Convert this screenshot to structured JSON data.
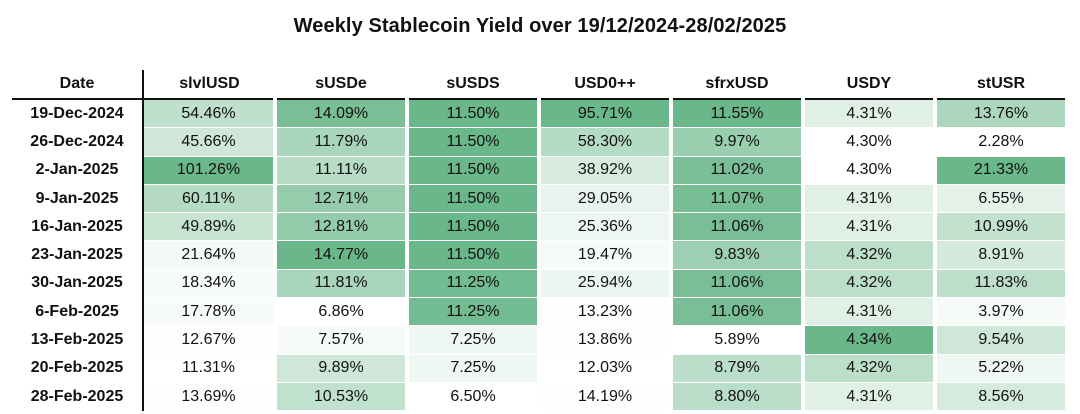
{
  "chart_data": {
    "type": "heatmap",
    "title": "Weekly Stablecoin Yield over 19/12/2024-28/02/2025",
    "row_header": "Date",
    "columns": [
      "slvlUSD",
      "sUSDe",
      "sUSDS",
      "USD0++",
      "sfrxUSD",
      "USDY",
      "stUSR"
    ],
    "rows": [
      "19-Dec-2024",
      "26-Dec-2024",
      "2-Jan-2025",
      "9-Jan-2025",
      "16-Jan-2025",
      "23-Jan-2025",
      "30-Jan-2025",
      "6-Feb-2025",
      "13-Feb-2025",
      "20-Feb-2025",
      "28-Feb-2025"
    ],
    "values": [
      [
        54.46,
        14.09,
        11.5,
        95.71,
        11.55,
        4.31,
        13.76
      ],
      [
        45.66,
        11.79,
        11.5,
        58.3,
        9.97,
        4.3,
        2.28
      ],
      [
        101.26,
        11.11,
        11.5,
        38.92,
        11.02,
        4.3,
        21.33
      ],
      [
        60.11,
        12.71,
        11.5,
        29.05,
        11.07,
        4.31,
        6.55
      ],
      [
        49.89,
        12.81,
        11.5,
        25.36,
        11.06,
        4.31,
        10.99
      ],
      [
        21.64,
        14.77,
        11.5,
        19.47,
        9.83,
        4.32,
        8.91
      ],
      [
        18.34,
        11.81,
        11.25,
        25.94,
        11.06,
        4.32,
        11.83
      ],
      [
        17.78,
        6.86,
        11.25,
        13.23,
        11.06,
        4.31,
        3.97
      ],
      [
        12.67,
        7.57,
        7.25,
        13.86,
        5.89,
        4.34,
        9.54
      ],
      [
        11.31,
        9.89,
        7.25,
        12.03,
        8.79,
        4.32,
        5.22
      ],
      [
        13.69,
        10.53,
        6.5,
        14.19,
        8.8,
        4.31,
        8.56
      ]
    ],
    "unit": "%",
    "color_scale": "per-column white-to-green",
    "colors": {
      "low": "#ffffff",
      "high": "#6ab78a",
      "line": "#111111"
    }
  }
}
